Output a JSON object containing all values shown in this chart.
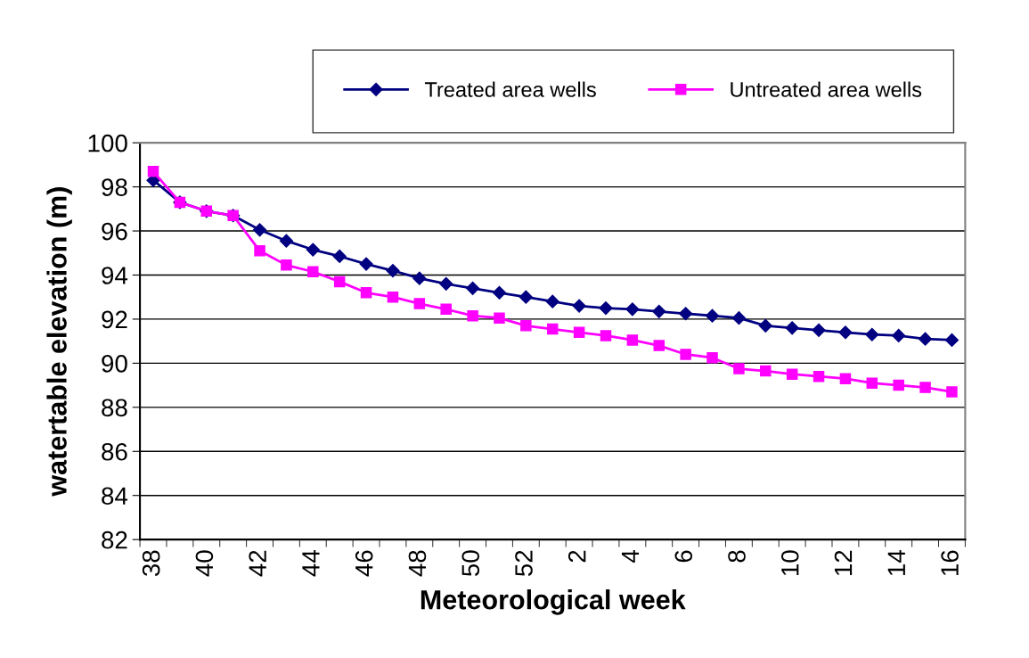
{
  "chart_data": {
    "type": "line",
    "xlabel": "Meteorological week",
    "ylabel": "watertable elevation (m)",
    "categories": [
      "38",
      null,
      "40",
      null,
      "42",
      null,
      "44",
      null,
      "46",
      null,
      "48",
      null,
      "50",
      null,
      "52",
      null,
      "2",
      null,
      "4",
      null,
      "6",
      null,
      "8",
      null,
      "10",
      null,
      "12",
      null,
      "14",
      null,
      "16"
    ],
    "series": [
      {
        "name": "Treated area wells",
        "color": "#000080",
        "marker": "diamond",
        "values": [
          98.3,
          97.3,
          96.9,
          96.7,
          96.05,
          95.55,
          95.15,
          94.85,
          94.5,
          94.2,
          93.85,
          93.6,
          93.4,
          93.2,
          93.0,
          92.8,
          92.6,
          92.5,
          92.45,
          92.35,
          92.25,
          92.15,
          92.05,
          91.7,
          91.6,
          91.5,
          91.4,
          91.3,
          91.25,
          91.1,
          91.05
        ]
      },
      {
        "name": "Untreated area wells",
        "color": "#ff00ff",
        "marker": "square",
        "values": [
          98.7,
          97.3,
          96.9,
          96.7,
          95.1,
          94.45,
          94.15,
          93.7,
          93.2,
          93.0,
          92.7,
          92.45,
          92.15,
          92.05,
          91.7,
          91.55,
          91.4,
          91.25,
          91.05,
          90.8,
          90.4,
          90.25,
          89.75,
          89.65,
          89.5,
          89.4,
          89.3,
          89.1,
          89.0,
          88.9,
          88.7
        ]
      }
    ],
    "ylim": [
      82,
      100
    ],
    "yticks": [
      82,
      84,
      86,
      88,
      90,
      92,
      94,
      96,
      98,
      100
    ],
    "grid": "y",
    "legend": "top right"
  }
}
